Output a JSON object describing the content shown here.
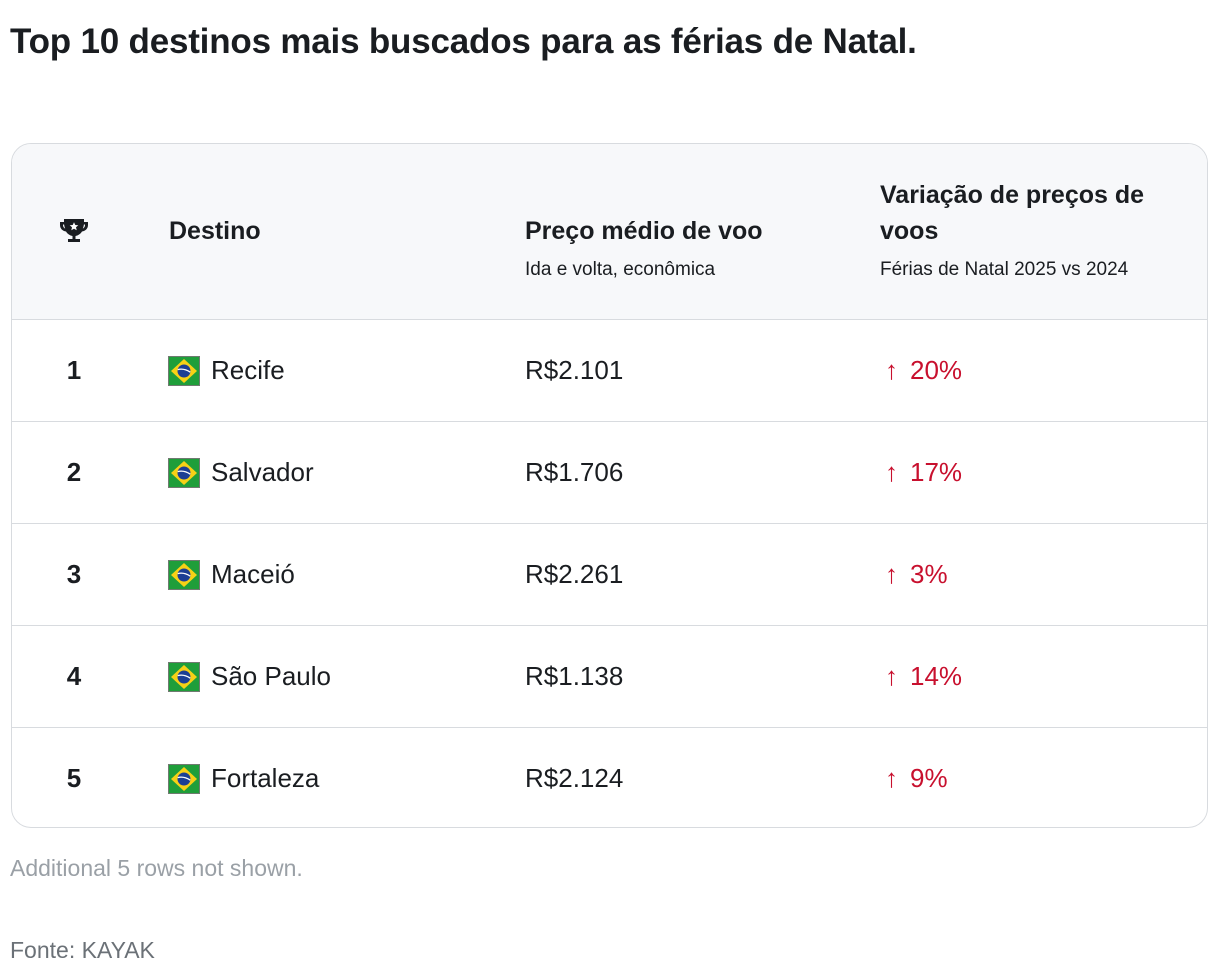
{
  "title": "Top 10 destinos mais buscados para as férias de Natal.",
  "table": {
    "rank_icon": "trophy-icon",
    "headers": {
      "destination": "Destino",
      "price": "Preço médio de voo",
      "price_sub": "Ida e volta, econômica",
      "variation": "Variação de preços de voos",
      "variation_sub": "Férias de Natal 2025 vs 2024"
    },
    "flag_icon": "brazil-flag-icon",
    "change_arrow": "↑",
    "rows": [
      {
        "rank": "1",
        "destination": "Recife",
        "price": "R$2.101",
        "change": "20%"
      },
      {
        "rank": "2",
        "destination": "Salvador",
        "price": "R$1.706",
        "change": "17%"
      },
      {
        "rank": "3",
        "destination": "Maceió",
        "price": "R$2.261",
        "change": "3%"
      },
      {
        "rank": "4",
        "destination": "São Paulo",
        "price": "R$1.138",
        "change": "14%"
      },
      {
        "rank": "5",
        "destination": "Fortaleza",
        "price": "R$2.124",
        "change": "9%"
      }
    ]
  },
  "note": "Additional 5 rows not shown.",
  "source": "Fonte: KAYAK",
  "colors": {
    "text": "#1a1d21",
    "header_bg": "#f7f8fa",
    "border": "#d8dbdf",
    "increase": "#c8102e",
    "note": "#9aa0a6",
    "flag_green": "#1f9e3a",
    "flag_yellow": "#f7d116",
    "flag_blue": "#1c3f94"
  }
}
